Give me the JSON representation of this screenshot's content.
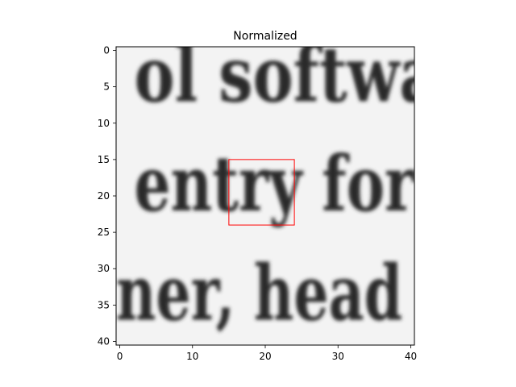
{
  "chart_data": {
    "type": "image",
    "title": "Normalized",
    "colormap": "gray",
    "image_size": [
      41,
      41
    ],
    "xlim": [
      -0.5,
      40.5
    ],
    "ylim": [
      40.5,
      -0.5
    ],
    "x_ticks": [
      0,
      10,
      20,
      30,
      40
    ],
    "x_tick_labels": [
      "0",
      "10",
      "20",
      "30",
      "40"
    ],
    "y_ticks": [
      0,
      5,
      10,
      15,
      20,
      25,
      30,
      35,
      40
    ],
    "y_tick_labels": [
      "0",
      "5",
      "10",
      "15",
      "20",
      "25",
      "30",
      "35",
      "40"
    ],
    "text_lines": [
      {
        "text": "ol   softwa",
        "baseline_row": 7
      },
      {
        "text": "entry  for",
        "baseline_row": 22
      },
      {
        "text": "ner,  head",
        "baseline_row": 37
      }
    ],
    "highlight_box": {
      "x_range": [
        15,
        24
      ],
      "y_range": [
        15,
        24
      ],
      "color": "#ff0000"
    },
    "grid": false,
    "legend": "none"
  }
}
